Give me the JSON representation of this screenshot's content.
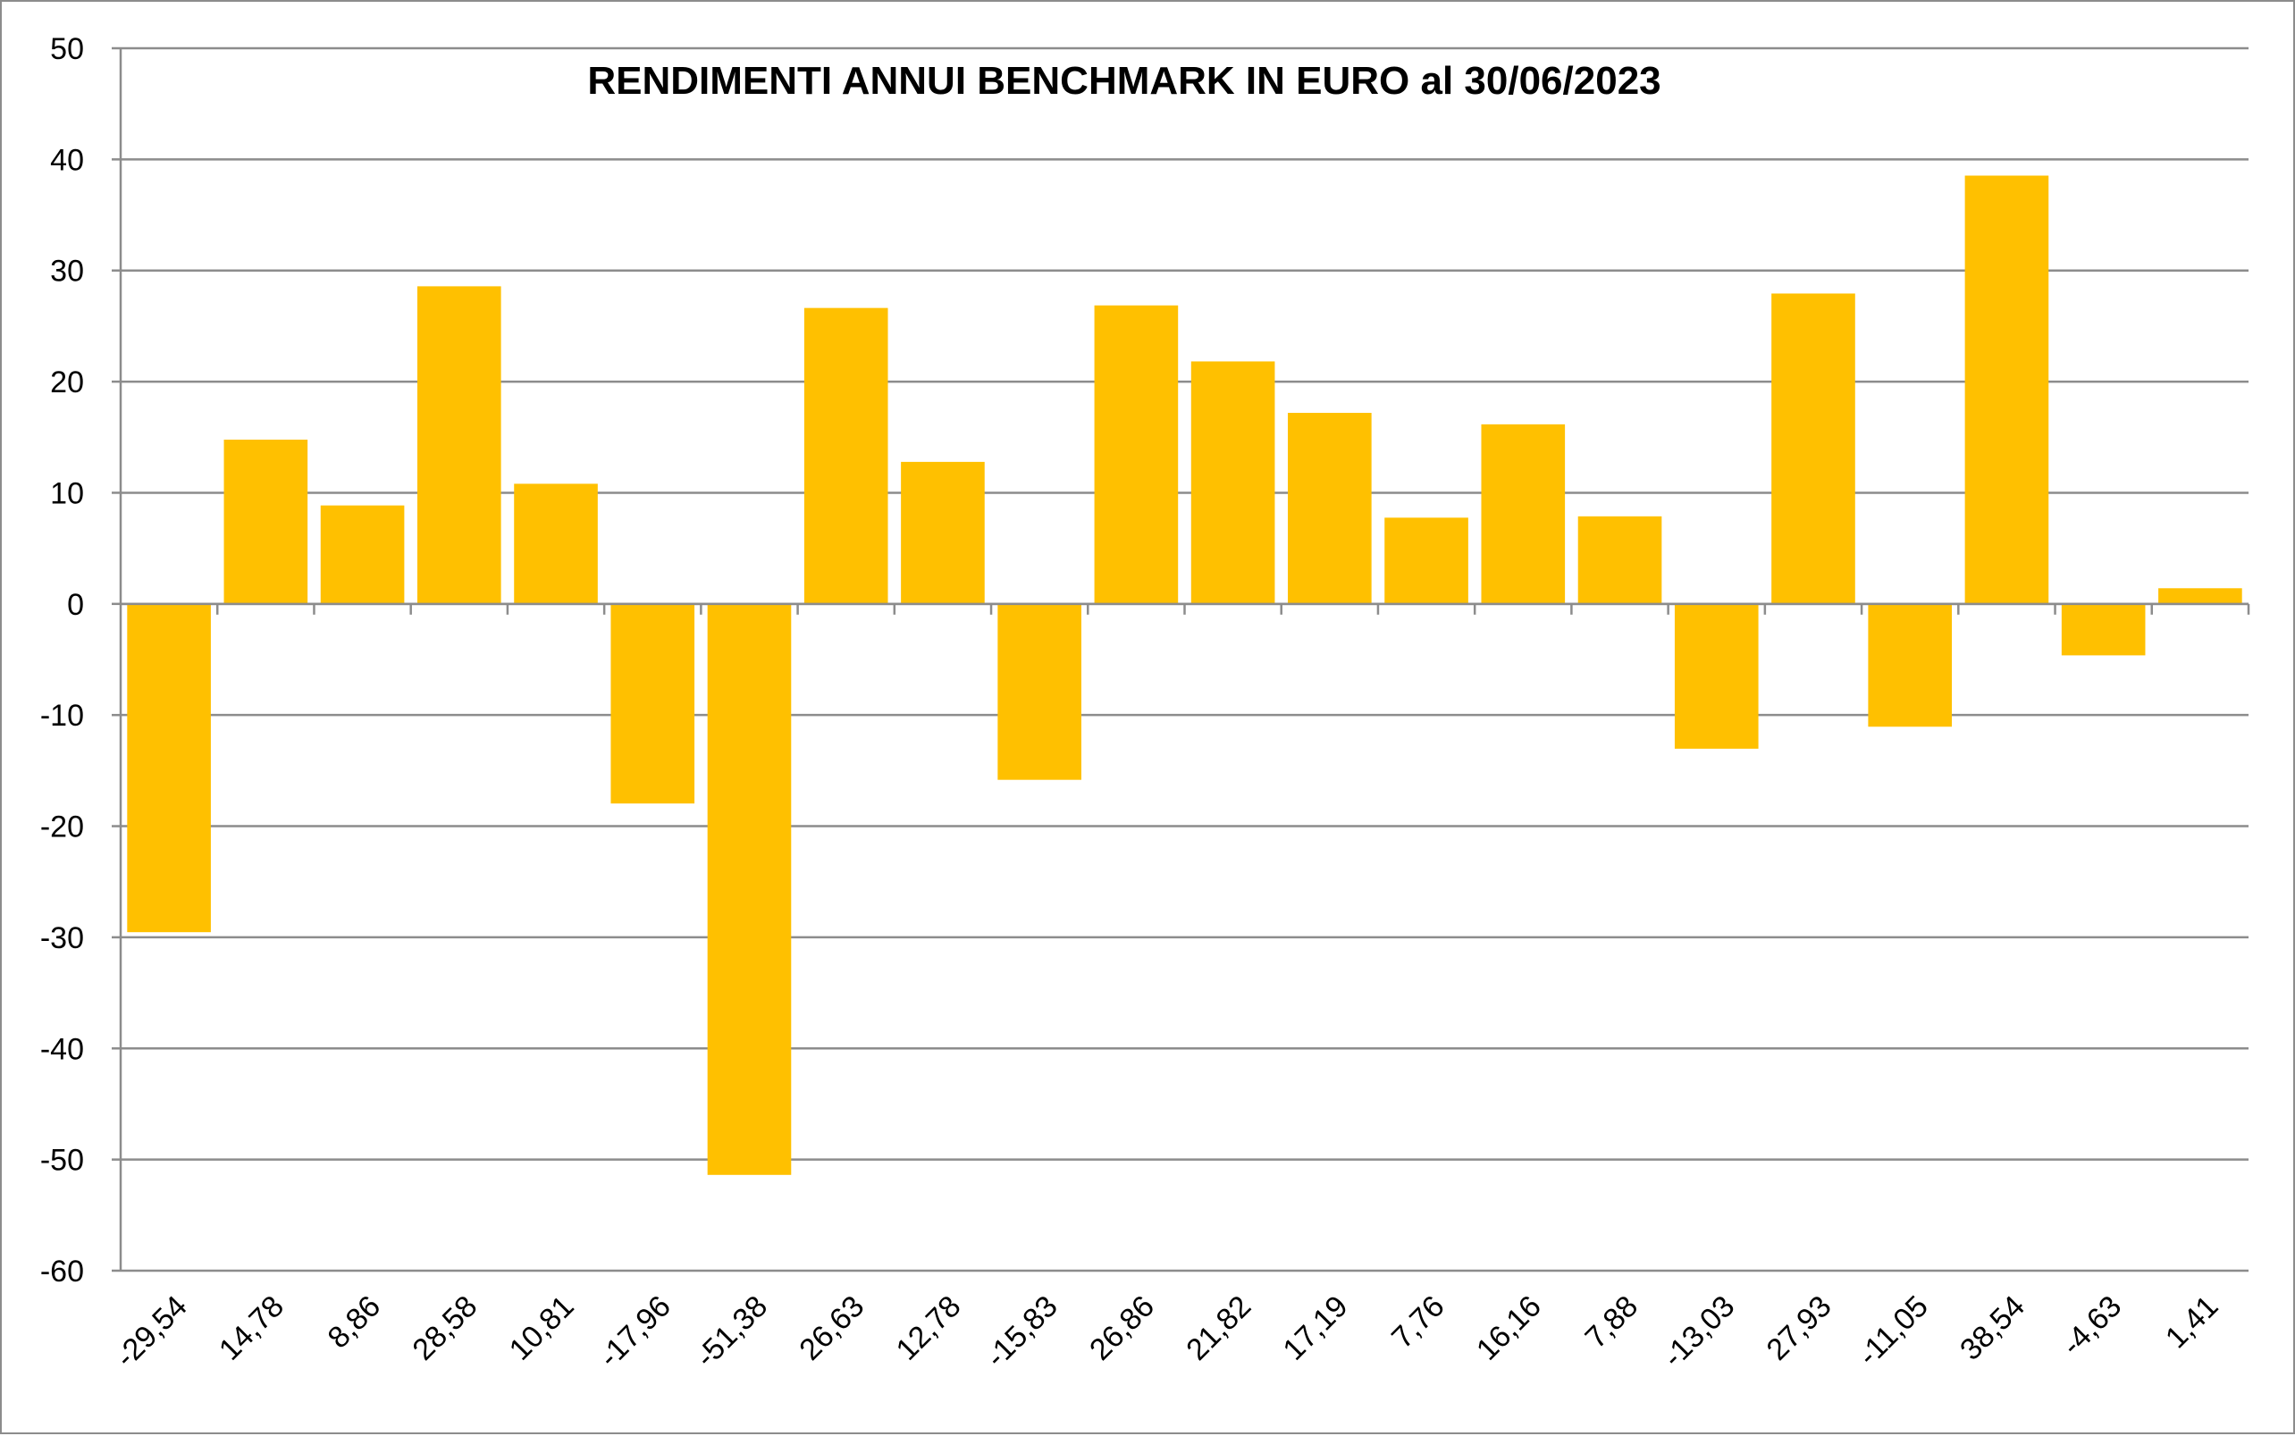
{
  "chart_data": {
    "type": "bar",
    "title": "RENDIMENTI ANNUI BENCHMARK IN EURO al 30/06/2023",
    "xlabel": "",
    "ylabel": "",
    "categories": [
      "-29,54",
      "14,78",
      "8,86",
      "28,58",
      "10,81",
      "-17,96",
      "-51,38",
      "26,63",
      "12,78",
      "-15,83",
      "26,86",
      "21,82",
      "17,19",
      "7,76",
      "16,16",
      "7,88",
      "-13,03",
      "27,93",
      "-11,05",
      "38,54",
      "-4,63",
      "1,41"
    ],
    "values": [
      -29.54,
      14.78,
      8.86,
      28.58,
      10.81,
      -17.96,
      -51.38,
      26.63,
      12.78,
      -15.83,
      26.86,
      21.82,
      17.19,
      7.76,
      16.16,
      7.88,
      -13.03,
      27.93,
      -11.05,
      38.54,
      -4.63,
      1.41
    ],
    "ylim": [
      -60,
      50
    ],
    "yticks": [
      50,
      40,
      30,
      20,
      10,
      0,
      -10,
      -20,
      -30,
      -40,
      -50,
      -60
    ],
    "ytick_labels": [
      "50",
      "40",
      "30",
      "20",
      "10",
      "0",
      "-10",
      "-20",
      "-30",
      "-40",
      "-50",
      "-60"
    ],
    "grid": true,
    "legend": "none",
    "colors": {
      "bar": "#FFC000",
      "grid": "#8c8c8c",
      "frame": "#8c8c8c"
    }
  }
}
